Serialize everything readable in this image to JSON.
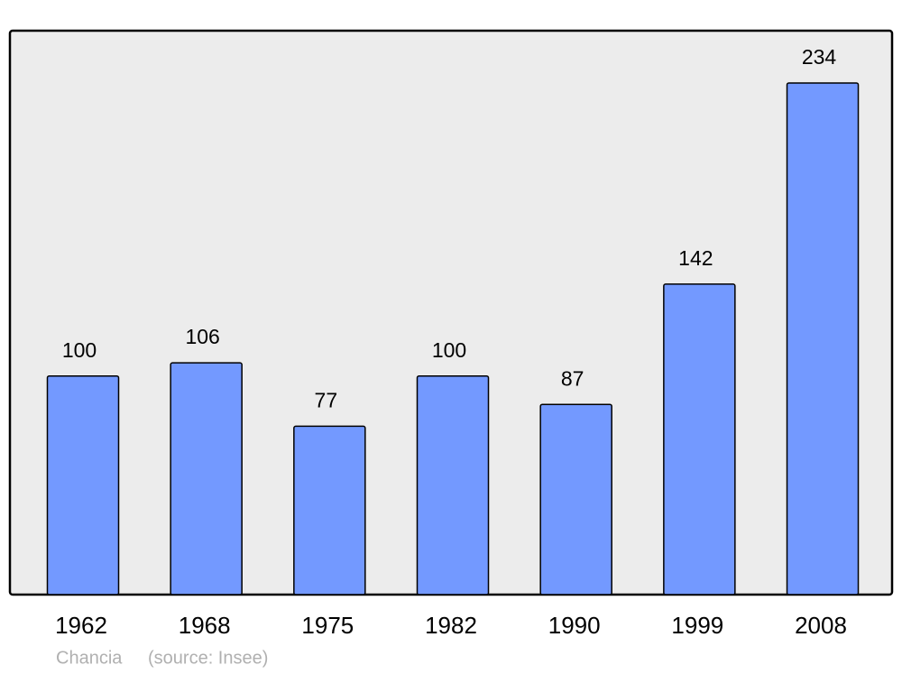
{
  "chart_data": {
    "type": "bar",
    "categories": [
      "1962",
      "1968",
      "1975",
      "1982",
      "1990",
      "1999",
      "2008"
    ],
    "values": [
      100,
      106,
      77,
      100,
      87,
      142,
      234
    ],
    "color": "#7399ff",
    "place": "Chancia",
    "source": "(source: Insee)"
  }
}
